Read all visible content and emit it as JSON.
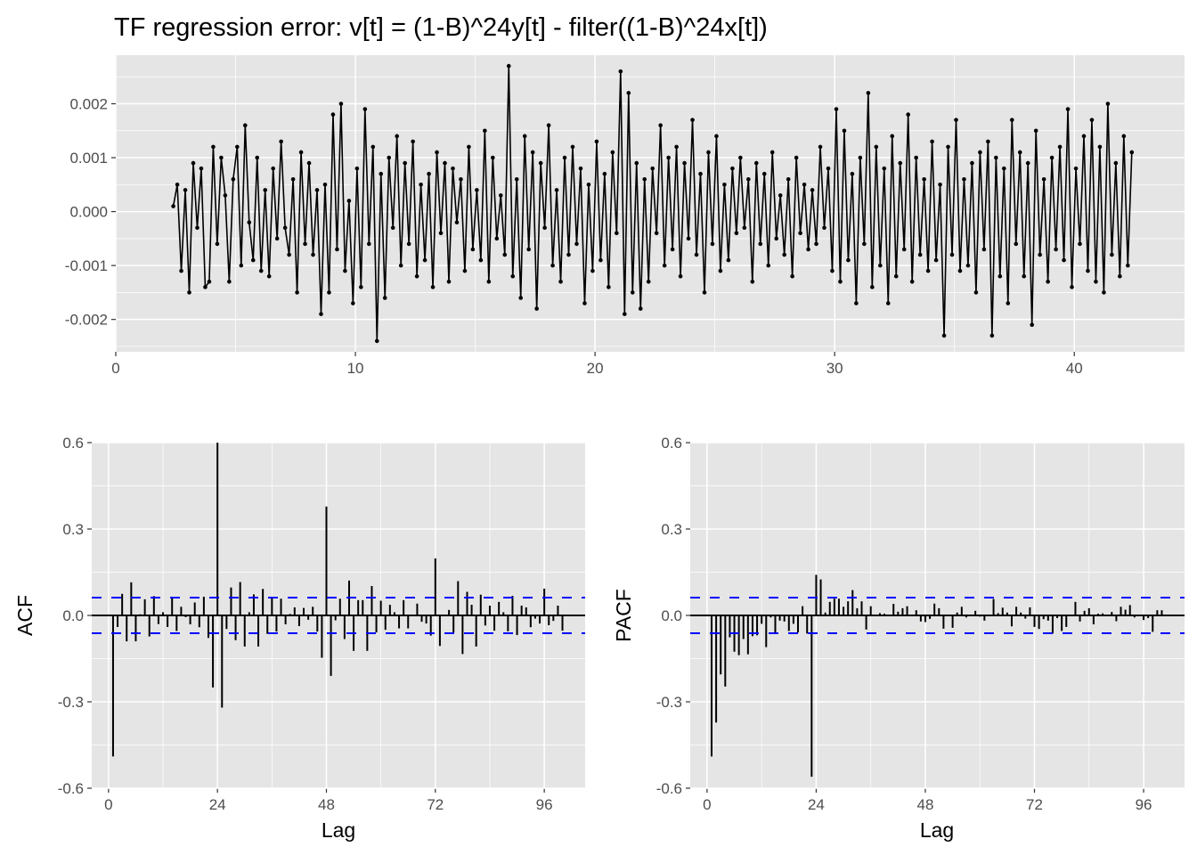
{
  "chart_data": [
    {
      "type": "line",
      "title": "TF regression error: v[t] = (1-B)^24y[t] - filter((1-B)^24x[t])",
      "xlabel": "",
      "ylabel": "",
      "xlim": [
        0,
        44.6
      ],
      "ylim": [
        -0.0026,
        0.0029
      ],
      "x_start": 2.4,
      "x_step": 0.1666667,
      "value_scale": 0.0001,
      "values_scaled": [
        1,
        5,
        -11,
        4,
        -15,
        9,
        -3,
        8,
        -14,
        -13,
        12,
        -6,
        10,
        3,
        -13,
        6,
        12,
        -10,
        16,
        -2,
        -9,
        10,
        -11,
        4,
        -12,
        8,
        -5,
        13,
        -3,
        -8,
        6,
        -15,
        11,
        -6,
        9,
        -8,
        4,
        -19,
        5,
        -15,
        18,
        -7,
        20,
        -11,
        2,
        -17,
        8,
        -14,
        19,
        -6,
        12,
        -24,
        7,
        -16,
        10,
        -3,
        14,
        -10,
        9,
        -6,
        13,
        -12,
        5,
        -9,
        7,
        -14,
        11,
        -4,
        9,
        -13,
        8,
        -2,
        6,
        -11,
        12,
        -7,
        4,
        -9,
        15,
        -13,
        10,
        -5,
        3,
        -8,
        27,
        -12,
        6,
        -16,
        14,
        -7,
        11,
        -18,
        9,
        -3,
        16,
        -10,
        4,
        -13,
        10,
        -8,
        12,
        -6,
        8,
        -17,
        5,
        -11,
        13,
        -9,
        7,
        -14,
        11,
        -4,
        26,
        -19,
        22,
        -15,
        9,
        -18,
        6,
        -13,
        8,
        -4,
        16,
        -10,
        10,
        -7,
        12,
        -12,
        9,
        -5,
        17,
        -8,
        7,
        -15,
        11,
        -6,
        14,
        -11,
        5,
        -9,
        8,
        -4,
        10,
        -3,
        6,
        -13,
        9,
        -6,
        7,
        -10,
        11,
        -5,
        3,
        -8,
        6,
        -12,
        10,
        -4,
        5,
        -7,
        4,
        -6,
        12,
        -3,
        8,
        -11,
        19,
        -13,
        15,
        -9,
        7,
        -17,
        10,
        -6,
        22,
        -14,
        12,
        -10,
        8,
        -17,
        14,
        -12,
        9,
        -7,
        18,
        -13,
        10,
        -8,
        6,
        -11,
        13,
        -9,
        5,
        -23,
        12,
        -8,
        17,
        -11,
        6,
        -10,
        9,
        -15,
        11,
        -7,
        13,
        -23,
        10,
        -12,
        8,
        -17,
        17,
        -6,
        11,
        -12,
        9,
        -21,
        15,
        -8,
        6,
        -13,
        10,
        -7,
        12,
        -9,
        19,
        -14,
        8,
        -6,
        14,
        -11,
        17,
        -13,
        12,
        -15,
        20,
        -8,
        9,
        -12,
        14,
        -10,
        11
      ],
      "x_ticks": [
        0,
        10,
        20,
        30,
        40
      ],
      "x_tick_labels": [
        "0",
        "10",
        "20",
        "30",
        "40"
      ],
      "y_ticks": [
        0.002,
        0.001,
        0,
        -0.001,
        -0.002
      ],
      "y_tick_labels": [
        "0.002",
        "0.001",
        "0.000",
        "-0.001",
        "-0.002"
      ],
      "grid": true
    },
    {
      "type": "bar",
      "xlabel": "Lag",
      "ylabel": "ACF",
      "xlim": [
        -3.7,
        105
      ],
      "ylim": [
        -0.6,
        0.6
      ],
      "ci": 0.062,
      "lags_start": 1,
      "values": [
        -0.49,
        -0.04,
        0.075,
        -0.09,
        0.115,
        -0.09,
        0.004,
        0.056,
        -0.073,
        0.067,
        -0.03,
        0.011,
        -0.04,
        0.064,
        -0.054,
        0.03,
        -0.006,
        -0.031,
        0.045,
        -0.041,
        0.065,
        -0.078,
        -0.25,
        0.6,
        -0.32,
        -0.047,
        0.097,
        -0.086,
        0.116,
        -0.108,
        0.011,
        0.073,
        -0.108,
        0.092,
        -0.064,
        0.059,
        -0.056,
        0.058,
        -0.031,
        0.005,
        0.028,
        -0.037,
        0.026,
        -0.015,
        0.03,
        -0.056,
        -0.147,
        0.378,
        -0.21,
        -0.017,
        0.058,
        -0.082,
        0.121,
        -0.123,
        0.053,
        0.053,
        -0.123,
        0.102,
        -0.059,
        0.051,
        -0.05,
        0.037,
        0.011,
        -0.045,
        0.053,
        -0.045,
        0.003,
        0.041,
        -0.022,
        -0.028,
        -0.07,
        0.198,
        -0.106,
        0.003,
        0.019,
        -0.059,
        0.119,
        -0.134,
        0.082,
        0.037,
        -0.108,
        0.072,
        -0.035,
        0.034,
        -0.053,
        0.047,
        0.011,
        -0.055,
        0.068,
        -0.068,
        0.034,
        0.028,
        -0.041,
        -0.011,
        -0.028,
        0.093,
        -0.034,
        -0.019,
        0.034,
        -0.053
      ],
      "x_ticks": [
        0,
        24,
        48,
        72,
        96
      ],
      "x_tick_labels": [
        "0",
        "24",
        "48",
        "72",
        "96"
      ],
      "y_ticks": [
        0.6,
        0.3,
        0,
        -0.3,
        -0.6
      ],
      "y_tick_labels": [
        "0.6",
        "0.3",
        "0.0",
        "-0.3",
        "-0.6"
      ],
      "grid": true
    },
    {
      "type": "bar",
      "xlabel": "Lag",
      "ylabel": "PACF",
      "xlim": [
        -3.7,
        105
      ],
      "ylim": [
        -0.6,
        0.6
      ],
      "ci": 0.062,
      "lags_start": 1,
      "values": [
        -0.49,
        -0.372,
        -0.205,
        -0.247,
        -0.076,
        -0.126,
        -0.138,
        -0.082,
        -0.135,
        -0.072,
        -0.069,
        -0.029,
        -0.11,
        -0.007,
        -0.059,
        -0.018,
        -0.021,
        -0.054,
        -0.029,
        -0.059,
        0.032,
        -0.063,
        -0.56,
        0.141,
        0.125,
        0.01,
        0.047,
        0.058,
        0.058,
        0.03,
        0.049,
        0.088,
        0.025,
        0.049,
        -0.049,
        0.032,
        0.002,
        0.008,
        0.006,
        0.0,
        0.04,
        0.013,
        0.025,
        0.032,
        0.0,
        0.018,
        -0.021,
        -0.023,
        -0.012,
        0.041,
        0.025,
        -0.046,
        0.0,
        -0.043,
        0.01,
        0.03,
        -0.007,
        0.003,
        0.016,
        -0.004,
        -0.018,
        0.0,
        0.057,
        0.008,
        0.027,
        0.01,
        -0.038,
        0.03,
        0.01,
        -0.011,
        0.028,
        -0.04,
        -0.047,
        -0.013,
        -0.018,
        -0.063,
        -0.009,
        -0.054,
        -0.04,
        0.0,
        0.047,
        -0.021,
        0.016,
        0.025,
        -0.031,
        0.006,
        0.007,
        0.0,
        0.012,
        -0.02,
        0.03,
        0.02,
        0.036,
        -0.007,
        0.0,
        -0.016,
        -0.009,
        -0.057,
        0.018,
        0.018
      ],
      "x_ticks": [
        0,
        24,
        48,
        72,
        96
      ],
      "x_tick_labels": [
        "0",
        "24",
        "48",
        "72",
        "96"
      ],
      "y_ticks": [
        0.6,
        0.3,
        0,
        -0.3,
        -0.6
      ],
      "y_tick_labels": [
        "0.6",
        "0.3",
        "0.0",
        "-0.3",
        "-0.6"
      ],
      "grid": true
    }
  ],
  "colors": {
    "panel": "#e5e5e5",
    "grid": "#ffffff",
    "series": "#000000",
    "ci": "#0000ff"
  }
}
